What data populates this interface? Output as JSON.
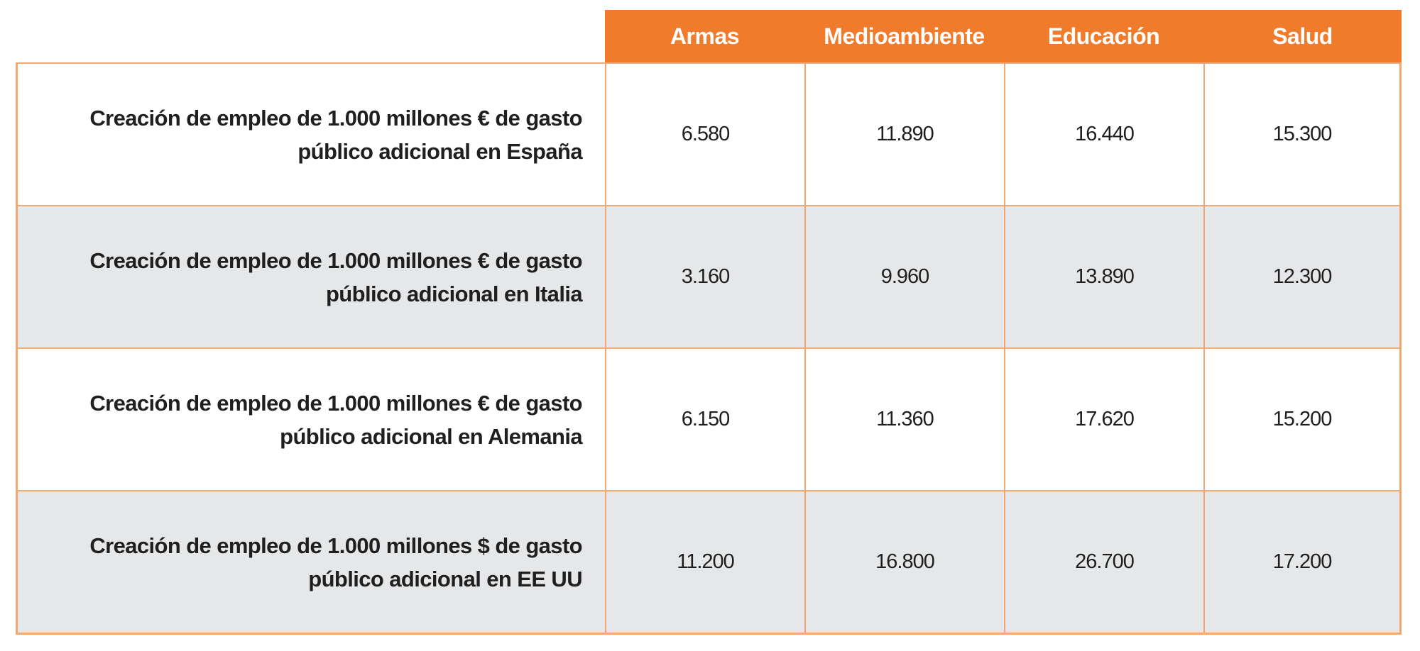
{
  "chart_data": {
    "type": "table",
    "columns": [
      "Armas",
      "Medioambiente",
      "Educación",
      "Salud"
    ],
    "rows": [
      {
        "label": "Creación de empleo de 1.000 millones € de gasto público adicional en España",
        "values": [
          "6.580",
          "11.890",
          "16.440",
          "15.300"
        ]
      },
      {
        "label": "Creación de empleo de 1.000 millones € de gasto público adicional en Italia",
        "values": [
          "3.160",
          "9.960",
          "13.890",
          "12.300"
        ]
      },
      {
        "label": "Creación de empleo de 1.000 millones € de gasto público adicional en Alemania",
        "values": [
          "6.150",
          "11.360",
          "17.620",
          "15.200"
        ]
      },
      {
        "label": "Creación de empleo de 1.000 millones $ de gasto público adicional en EE UU",
        "values": [
          "11.200",
          "16.800",
          "26.700",
          "17.200"
        ]
      }
    ],
    "colors": {
      "header_bg": "#f07b2a",
      "header_text": "#ffffff",
      "border": "#f1a873",
      "shaded_row": "#e6e7e8"
    }
  }
}
